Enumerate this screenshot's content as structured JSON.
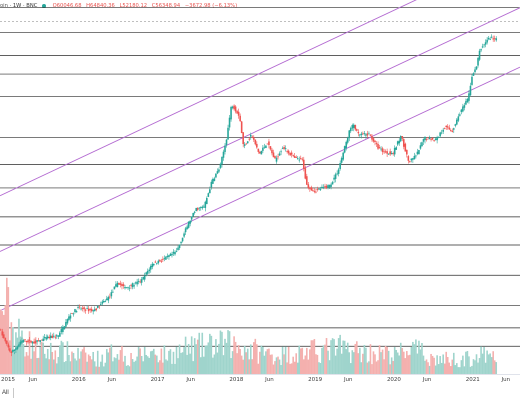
{
  "legend": {
    "symbol": "oin",
    "interval": "1W",
    "exchange": "BNC",
    "open": "O60046.68",
    "high": "H64840.36",
    "low": "L52180.12",
    "close": "C56348.94",
    "change": "−3672.98 (−6.13%)"
  },
  "toolbar": {
    "range_all": "All"
  },
  "colors": {
    "up": "#26a69a",
    "down": "#ef5350",
    "channel": "#b36ad1",
    "level": "#2a2a2a",
    "axis_text": "#3a3a3a"
  },
  "chart_data": {
    "type": "candlestick",
    "x_ticks": [
      "2015",
      "Jun",
      "2016",
      "Jun",
      "2017",
      "Jun",
      "2018",
      "Jun",
      "2019",
      "Jun",
      "2020",
      "Jun",
      "2021",
      "Jun"
    ],
    "x_range": [
      2015.0,
      2021.6
    ],
    "y_scale": "log",
    "y_range": [
      130,
      115000
    ],
    "horizontal_levels": [
      100000,
      64000,
      42000,
      30000,
      20000,
      9500,
      5800,
      3800,
      2250,
      1350,
      780,
      450,
      300,
      215
    ],
    "channel_lines": [
      {
        "from": [
          2015.0,
          410
        ],
        "to": [
          2021.6,
          34000
        ]
      },
      {
        "from": [
          2015.0,
          1200
        ],
        "to": [
          2021.6,
          100000
        ]
      },
      {
        "from": [
          2015.0,
          3300
        ],
        "to": [
          2021.6,
          280000
        ]
      }
    ],
    "price_path": [
      [
        2015.0,
        300
      ],
      [
        2015.08,
        230
      ],
      [
        2015.15,
        190
      ],
      [
        2015.3,
        240
      ],
      [
        2015.45,
        230
      ],
      [
        2015.6,
        250
      ],
      [
        2015.75,
        260
      ],
      [
        2015.9,
        380
      ],
      [
        2016.0,
        430
      ],
      [
        2016.2,
        410
      ],
      [
        2016.4,
        530
      ],
      [
        2016.5,
        680
      ],
      [
        2016.6,
        620
      ],
      [
        2016.8,
        700
      ],
      [
        2016.95,
        970
      ],
      [
        2017.1,
        1050
      ],
      [
        2017.25,
        1200
      ],
      [
        2017.4,
        2000
      ],
      [
        2017.5,
        2600
      ],
      [
        2017.6,
        2700
      ],
      [
        2017.7,
        4300
      ],
      [
        2017.8,
        5500
      ],
      [
        2017.88,
        9000
      ],
      [
        2017.95,
        17500
      ],
      [
        2018.05,
        14000
      ],
      [
        2018.1,
        8000
      ],
      [
        2018.2,
        10000
      ],
      [
        2018.3,
        7000
      ],
      [
        2018.4,
        8700
      ],
      [
        2018.5,
        6300
      ],
      [
        2018.6,
        8000
      ],
      [
        2018.75,
        6500
      ],
      [
        2018.85,
        6300
      ],
      [
        2018.9,
        4000
      ],
      [
        2019.0,
        3600
      ],
      [
        2019.2,
        4000
      ],
      [
        2019.3,
        5200
      ],
      [
        2019.45,
        11000
      ],
      [
        2019.5,
        12000
      ],
      [
        2019.55,
        10000
      ],
      [
        2019.7,
        10000
      ],
      [
        2019.8,
        8000
      ],
      [
        2019.9,
        7200
      ],
      [
        2020.0,
        7200
      ],
      [
        2020.1,
        9800
      ],
      [
        2020.2,
        6000
      ],
      [
        2020.3,
        7000
      ],
      [
        2020.4,
        9500
      ],
      [
        2020.55,
        9200
      ],
      [
        2020.65,
        11500
      ],
      [
        2020.75,
        10700
      ],
      [
        2020.85,
        15000
      ],
      [
        2020.95,
        19000
      ],
      [
        2021.0,
        29000
      ],
      [
        2021.05,
        33000
      ],
      [
        2021.1,
        46000
      ],
      [
        2021.2,
        57000
      ],
      [
        2021.25,
        58000
      ],
      [
        2021.3,
        56348
      ]
    ],
    "volume_profile": [
      [
        2015.0,
        0.7
      ],
      [
        2015.05,
        1.0
      ],
      [
        2015.15,
        0.6
      ],
      [
        2015.3,
        0.45
      ],
      [
        2015.5,
        0.3
      ],
      [
        2015.8,
        0.3
      ],
      [
        2016.0,
        0.25
      ],
      [
        2016.3,
        0.2
      ],
      [
        2016.5,
        0.35
      ],
      [
        2016.6,
        0.2
      ],
      [
        2016.95,
        0.3
      ],
      [
        2017.1,
        0.25
      ],
      [
        2017.4,
        0.35
      ],
      [
        2017.9,
        0.4
      ],
      [
        2018.1,
        0.35
      ],
      [
        2018.5,
        0.25
      ],
      [
        2018.9,
        0.3
      ],
      [
        2019.3,
        0.35
      ],
      [
        2019.6,
        0.3
      ],
      [
        2020.0,
        0.25
      ],
      [
        2020.2,
        0.35
      ],
      [
        2020.5,
        0.2
      ],
      [
        2020.9,
        0.2
      ],
      [
        2021.1,
        0.25
      ],
      [
        2021.3,
        0.2
      ]
    ]
  }
}
